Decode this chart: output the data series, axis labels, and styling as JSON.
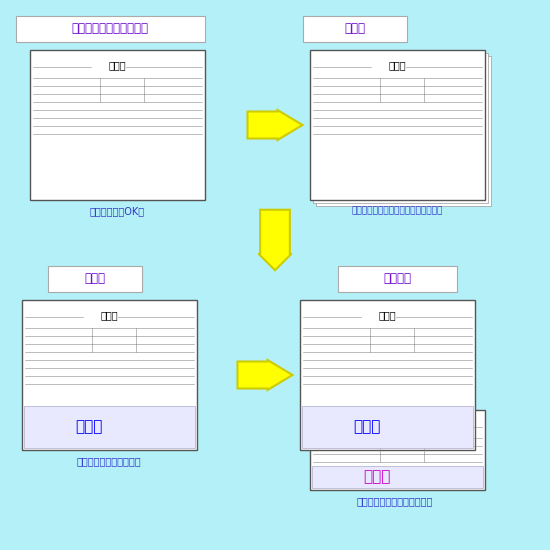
{
  "bg_color": "#b3f0f7",
  "title1": "一枚ずつ書式をプリント",
  "title2": "重ねる",
  "title3": "手書き",
  "title4": "下に複写",
  "caption1": "コピー機でもOK！",
  "caption2": "必要に応じてホッチキス等で止める。",
  "caption3": "ボールペンで書きます。",
  "caption4": "書いた文字が下に写ります。",
  "namae": "なまえ",
  "mousiji": "申込書",
  "title_color": "#6600cc",
  "caption_color": "#3333cc",
  "namae_color_blue": "#0000ff",
  "namae_color_dark": "#cc00cc",
  "arrow_color": "#ffff00",
  "arrow_edge_color": "#cccc00",
  "paper_color": "#ffffff",
  "paper_edge_color": "#999999",
  "label_bg_color": "#ffffff",
  "label_edge_color": "#aaaaaa"
}
